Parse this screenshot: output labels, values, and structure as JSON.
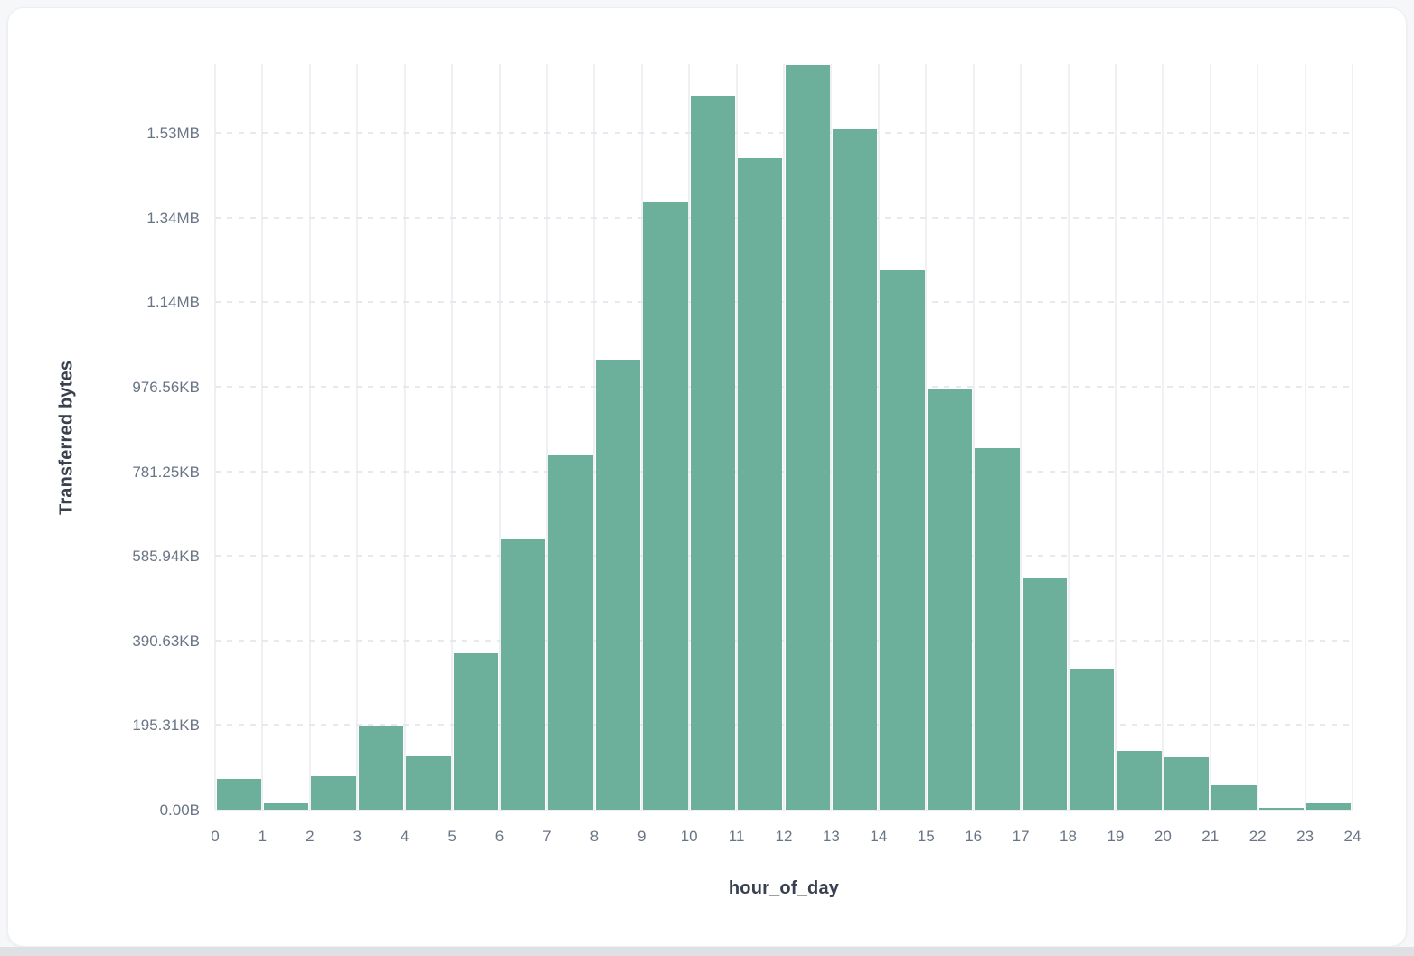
{
  "chart_data": {
    "type": "bar",
    "title": "",
    "xlabel": "hour_of_day",
    "ylabel": "Transferred bytes",
    "categories": [
      0,
      1,
      2,
      3,
      4,
      5,
      6,
      7,
      8,
      9,
      10,
      11,
      12,
      13,
      14,
      15,
      16,
      17,
      18,
      19,
      20,
      21,
      22,
      23
    ],
    "values": [
      73000,
      15500,
      79000,
      196000,
      126000,
      369000,
      640000,
      838000,
      1065000,
      1437000,
      1688000,
      1540000,
      1761000,
      1609000,
      1276000,
      995000,
      854000,
      546000,
      333000,
      139000,
      123000,
      57000,
      5000,
      15000
    ],
    "values_unit": "bytes",
    "x_tick_labels": [
      "0",
      "1",
      "2",
      "3",
      "4",
      "5",
      "6",
      "7",
      "8",
      "9",
      "10",
      "11",
      "12",
      "13",
      "14",
      "15",
      "16",
      "17",
      "18",
      "19",
      "20",
      "21",
      "22",
      "23",
      "24"
    ],
    "y_tick_labels": [
      "0.00B",
      "195.31KB",
      "390.63KB",
      "585.94KB",
      "781.25KB",
      "976.56KB",
      "1.14MB",
      "1.34MB",
      "1.53MB"
    ],
    "y_tick_bytes": [
      0,
      200000,
      400000,
      600000,
      800000,
      1000000,
      1200000,
      1400000,
      1600000
    ],
    "ylim": [
      0,
      1765000
    ],
    "grid": true,
    "legend": "none",
    "bar_color": "#6cb09c",
    "bar_gap_color": "#ffffff"
  }
}
